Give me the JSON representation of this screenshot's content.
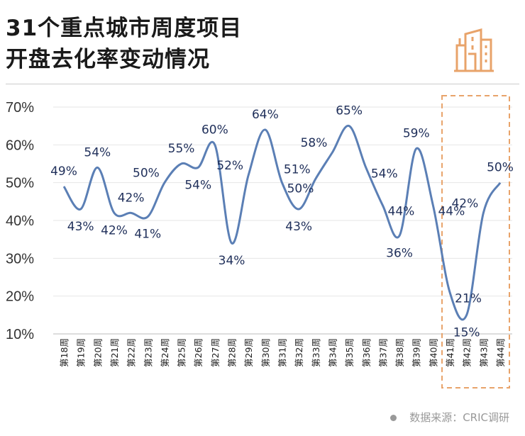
{
  "title_line1": "31个重点城市周度项目",
  "title_line2": "开盘去化率变动情况",
  "source": "数据来源：CRIC调研",
  "colors": {
    "line": "#5b7fb5",
    "label": "#1f2f5a",
    "highlight": "#e8a36a",
    "icon": "#e8a36a"
  },
  "chart_data": {
    "type": "line",
    "title": "31个重点城市周度项目开盘去化率变动情况",
    "xlabel": "",
    "ylabel": "",
    "ylim": [
      10,
      70
    ],
    "yticks": [
      "10%",
      "20%",
      "30%",
      "40%",
      "50%",
      "60%",
      "70%"
    ],
    "grid": true,
    "categories": [
      "第18周",
      "第19周",
      "第20周",
      "第21周",
      "第22周",
      "第23周",
      "第24周",
      "第25周",
      "第26周",
      "第27周",
      "第28周",
      "第29周",
      "第30周",
      "第31周",
      "第32周",
      "第33周",
      "第34周",
      "第35周",
      "第36周",
      "第37周",
      "第38周",
      "第39周",
      "第40周",
      "第41周",
      "第42周",
      "第43周",
      "第44周"
    ],
    "series": [
      {
        "name": "开盘去化率",
        "values": [
          49,
          43,
          54,
          42,
          42,
          41,
          50,
          55,
          54,
          60,
          34,
          52,
          64,
          50,
          43,
          51,
          58,
          65,
          54,
          44,
          36,
          59,
          44,
          21,
          15,
          42,
          50
        ]
      }
    ],
    "data_labels": [
      "49%",
      "43%",
      "54%",
      "42%",
      "42%",
      "41%",
      "50%",
      "55%",
      "54%",
      "60%",
      "34%",
      "52%",
      "64%",
      "50%",
      "43%",
      "51%",
      "58%",
      "65%",
      "54%",
      "44%",
      "36%",
      "59%",
      "44%",
      "21%",
      "15%",
      "42%",
      "50%"
    ],
    "highlight": [
      "第41周",
      "第44周"
    ]
  }
}
